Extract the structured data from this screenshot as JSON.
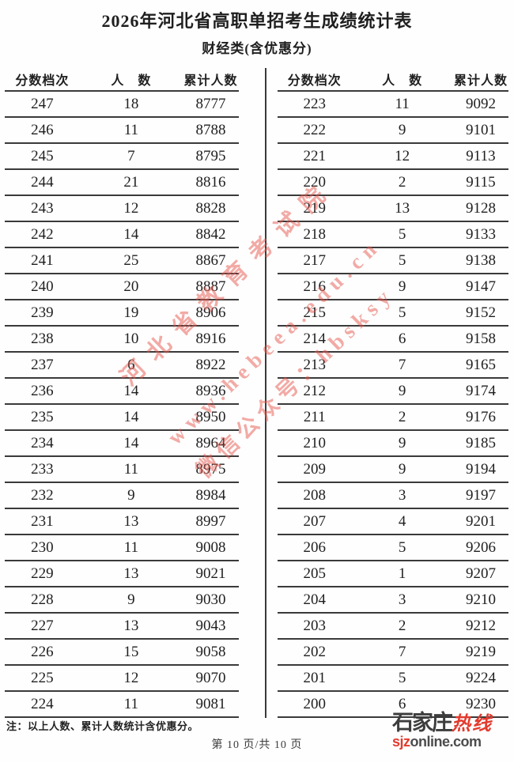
{
  "page": {
    "title": "2026年河北省高职单招考生成绩统计表",
    "subtitle": "财经类(含优惠分)",
    "note": "注：以上人数、累计人数统计含优惠分。",
    "page_indicator": "第 10 页/共 10 页"
  },
  "table_headers": [
    "分数档次",
    "人　数",
    "累计人数"
  ],
  "left_table": {
    "rows": [
      [
        247,
        18,
        8777
      ],
      [
        246,
        11,
        8788
      ],
      [
        245,
        7,
        8795
      ],
      [
        244,
        21,
        8816
      ],
      [
        243,
        12,
        8828
      ],
      [
        242,
        14,
        8842
      ],
      [
        241,
        25,
        8867
      ],
      [
        240,
        20,
        8887
      ],
      [
        239,
        19,
        8906
      ],
      [
        238,
        10,
        8916
      ],
      [
        237,
        6,
        8922
      ],
      [
        236,
        14,
        8936
      ],
      [
        235,
        14,
        8950
      ],
      [
        234,
        14,
        8964
      ],
      [
        233,
        11,
        8975
      ],
      [
        232,
        9,
        8984
      ],
      [
        231,
        13,
        8997
      ],
      [
        230,
        11,
        9008
      ],
      [
        229,
        13,
        9021
      ],
      [
        228,
        9,
        9030
      ],
      [
        227,
        13,
        9043
      ],
      [
        226,
        15,
        9058
      ],
      [
        225,
        12,
        9070
      ],
      [
        224,
        11,
        9081
      ]
    ]
  },
  "right_table": {
    "rows": [
      [
        223,
        11,
        9092
      ],
      [
        222,
        9,
        9101
      ],
      [
        221,
        12,
        9113
      ],
      [
        220,
        2,
        9115
      ],
      [
        219,
        13,
        9128
      ],
      [
        218,
        5,
        9133
      ],
      [
        217,
        5,
        9138
      ],
      [
        216,
        9,
        9147
      ],
      [
        215,
        5,
        9152
      ],
      [
        214,
        6,
        9158
      ],
      [
        213,
        7,
        9165
      ],
      [
        212,
        9,
        9174
      ],
      [
        211,
        2,
        9176
      ],
      [
        210,
        9,
        9185
      ],
      [
        209,
        9,
        9194
      ],
      [
        208,
        3,
        9197
      ],
      [
        207,
        4,
        9201
      ],
      [
        206,
        5,
        9206
      ],
      [
        205,
        1,
        9207
      ],
      [
        204,
        3,
        9210
      ],
      [
        203,
        2,
        9212
      ],
      [
        202,
        7,
        9219
      ],
      [
        201,
        5,
        9224
      ],
      [
        200,
        6,
        9230
      ]
    ]
  },
  "watermark": {
    "lines": [
      "河北省教育考试院",
      "www.hebeea.edu.cn",
      "微信公众号：hbsksy"
    ],
    "color": "#e6554b"
  },
  "logo": {
    "name_part1": "石家庄",
    "name_part2": "热线",
    "domain_accent": "sjz",
    "domain_rest": "online.com",
    "accent_color": "#e23b2e",
    "text_color": "#3d3d3d"
  }
}
